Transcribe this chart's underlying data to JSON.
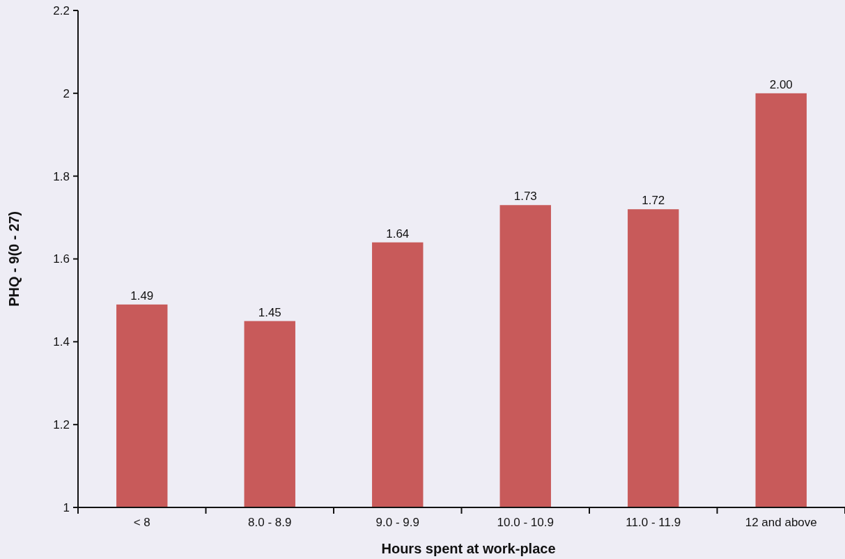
{
  "chart_data": {
    "type": "bar",
    "xlabel": "Hours spent at work-place",
    "ylabel": "PHQ - 9(0 - 27)",
    "categories": [
      "< 8",
      "8.0 - 8.9",
      "9.0 - 9.9",
      "10.0 - 10.9",
      "11.0 - 11.9",
      "12 and above"
    ],
    "values": [
      1.49,
      1.45,
      1.64,
      1.73,
      1.72,
      2.0
    ],
    "value_labels": [
      "1.49",
      "1.45",
      "1.64",
      "1.73",
      "1.72",
      "2.00"
    ],
    "color": "#c85a5a",
    "ylim": [
      1,
      2.2
    ],
    "yticks": [
      1,
      1.2,
      1.4,
      1.6,
      1.8,
      2,
      2.2
    ]
  }
}
